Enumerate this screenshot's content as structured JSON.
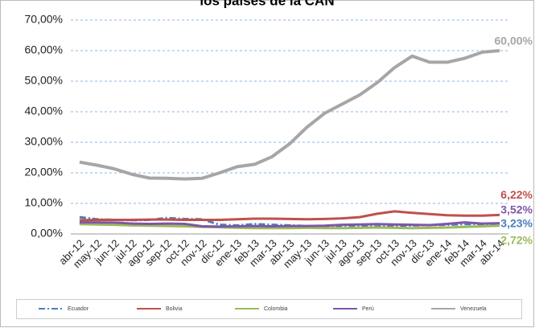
{
  "chart_data": {
    "type": "line",
    "title": "los países de la CAN",
    "categories": [
      "abr-12",
      "may-12",
      "jun-12",
      "jul-12",
      "ago-12",
      "sep-12",
      "oct-12",
      "nov-12",
      "dic-12",
      "ene-13",
      "feb-13",
      "mar-13",
      "abr-13",
      "may-13",
      "jun-13",
      "jul-13",
      "ago-13",
      "sep-13",
      "oct-13",
      "nov-13",
      "dic-13",
      "ene-14",
      "feb-14",
      "mar-14",
      "abr-14"
    ],
    "series": [
      {
        "name": "Ecuador",
        "color": "#4a7ebb",
        "values": [
          5.5,
          4.8,
          4.6,
          4.5,
          4.6,
          5.2,
          4.9,
          4.8,
          3.0,
          2.8,
          3.2,
          3.0,
          2.8,
          2.6,
          2.5,
          2.7,
          2.5,
          2.4,
          2.6,
          2.8,
          2.9,
          3.0,
          3.2,
          3.3,
          3.23
        ],
        "value_labels": [
          null,
          null,
          null,
          null,
          null,
          null,
          null,
          null,
          null,
          null,
          null,
          null,
          null,
          null,
          null,
          null,
          null,
          null,
          null,
          null,
          null,
          null,
          null,
          null,
          "3,23%"
        ]
      },
      {
        "name": "Bolivia",
        "color": "#c0504d",
        "values": [
          4.5,
          4.6,
          4.6,
          4.6,
          4.7,
          4.7,
          4.6,
          4.6,
          4.6,
          4.8,
          5.0,
          5.0,
          4.9,
          4.8,
          4.9,
          5.1,
          5.5,
          6.6,
          7.4,
          6.9,
          6.5,
          6.1,
          6.0,
          6.0,
          6.22
        ],
        "value_labels": [
          null,
          null,
          null,
          null,
          null,
          null,
          null,
          null,
          null,
          null,
          null,
          null,
          null,
          null,
          null,
          null,
          null,
          null,
          null,
          null,
          null,
          null,
          null,
          null,
          "6,22%"
        ]
      },
      {
        "name": "Colombia",
        "color": "#9bbb59",
        "values": [
          3.2,
          3.1,
          3.0,
          2.8,
          2.7,
          2.6,
          2.5,
          2.3,
          2.2,
          2.0,
          1.9,
          1.9,
          1.9,
          2.0,
          1.9,
          1.9,
          2.0,
          2.1,
          2.0,
          1.9,
          2.0,
          2.1,
          2.3,
          2.5,
          2.72
        ],
        "value_labels": [
          null,
          null,
          null,
          null,
          null,
          null,
          null,
          null,
          null,
          null,
          null,
          null,
          null,
          null,
          null,
          null,
          null,
          null,
          null,
          null,
          null,
          null,
          null,
          null,
          "2,72%"
        ]
      },
      {
        "name": "Perú",
        "color": "#7e57a8",
        "values": [
          3.8,
          3.8,
          3.7,
          3.4,
          3.3,
          3.4,
          3.3,
          2.5,
          2.4,
          2.5,
          2.6,
          2.5,
          2.6,
          2.6,
          2.7,
          3.0,
          3.1,
          3.2,
          3.1,
          3.0,
          2.9,
          3.3,
          3.8,
          3.4,
          3.52
        ],
        "value_labels": [
          null,
          null,
          null,
          null,
          null,
          null,
          null,
          null,
          null,
          null,
          null,
          null,
          null,
          null,
          null,
          null,
          null,
          null,
          null,
          null,
          null,
          null,
          null,
          null,
          "3,52%"
        ]
      },
      {
        "name": "Venezuela",
        "color": "#a6a6a6",
        "values": [
          23.5,
          22.5,
          21.3,
          19.5,
          18.3,
          18.2,
          18.0,
          18.2,
          20.0,
          22.0,
          22.8,
          25.3,
          29.5,
          35.0,
          39.5,
          42.5,
          45.5,
          49.5,
          54.5,
          58.2,
          56.2,
          56.2,
          57.5,
          59.5,
          60.0
        ],
        "value_labels": [
          null,
          null,
          null,
          null,
          null,
          null,
          null,
          null,
          null,
          null,
          null,
          null,
          null,
          null,
          null,
          null,
          null,
          null,
          null,
          null,
          null,
          null,
          null,
          null,
          "60,00%"
        ]
      }
    ],
    "ylim": [
      0,
      70
    ],
    "yticks": [
      {
        "value": 0,
        "label": "0,00%"
      },
      {
        "value": 10,
        "label": "10,00%"
      },
      {
        "value": 20,
        "label": "20,00%"
      },
      {
        "value": 30,
        "label": "30,00%"
      },
      {
        "value": 40,
        "label": "40,00%"
      },
      {
        "value": 50,
        "label": "50,00%"
      },
      {
        "value": 60,
        "label": "60,00%"
      },
      {
        "value": 70,
        "label": "70,00%"
      }
    ],
    "grid": true,
    "legend": "bottom"
  }
}
